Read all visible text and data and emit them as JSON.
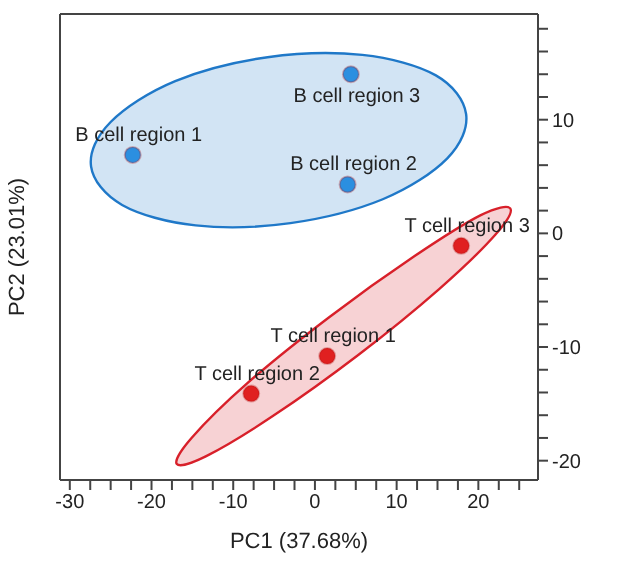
{
  "chart_data": {
    "type": "scatter",
    "xlabel": "PC1 (37.68%)",
    "ylabel": "PC2 (23.01%)",
    "xlim": [
      -31.2,
      27.3
    ],
    "ylim": [
      -21.7,
      19.3
    ],
    "xticks": [
      -30,
      {
        "value": -27.5,
        "label": null
      },
      {
        "value": -25,
        "label": null
      },
      {
        "value": -22.5,
        "label": null
      },
      -20,
      {
        "value": -17.5,
        "label": null
      },
      {
        "value": -15,
        "label": null
      },
      {
        "value": -12.5,
        "label": null
      },
      -10,
      {
        "value": -7.5,
        "label": null
      },
      {
        "value": -5,
        "label": null
      },
      {
        "value": -2.5,
        "label": null
      },
      0,
      {
        "value": 2.5,
        "label": null
      },
      {
        "value": 5,
        "label": null
      },
      {
        "value": 7.5,
        "label": null
      },
      10,
      {
        "value": 12.5,
        "label": null
      },
      {
        "value": 15,
        "label": null
      },
      {
        "value": 17.5,
        "label": null
      },
      20,
      {
        "value": 22.5,
        "label": null
      },
      {
        "value": 25,
        "label": null
      }
    ],
    "yticks": [
      -20,
      {
        "value": -18,
        "label": null
      },
      {
        "value": -16,
        "label": null
      },
      {
        "value": -14,
        "label": null
      },
      {
        "value": -12,
        "label": null
      },
      -10,
      {
        "value": -8,
        "label": null
      },
      {
        "value": -6,
        "label": null
      },
      {
        "value": -4,
        "label": null
      },
      {
        "value": -2,
        "label": null
      },
      0,
      {
        "value": 2,
        "label": null
      },
      {
        "value": 4,
        "label": null
      },
      {
        "value": 6,
        "label": null
      },
      {
        "value": 8,
        "label": null
      },
      10,
      {
        "value": 12,
        "label": null
      },
      {
        "value": 14,
        "label": null
      },
      {
        "value": 16,
        "label": null
      },
      {
        "value": 18,
        "label": null
      }
    ],
    "marker": "circle",
    "series": [
      {
        "type": "area",
        "marker": "none",
        "color": "#1f78c8",
        "x": [
          18.5,
          16.2,
          8.3,
          -3,
          -14.6,
          -23.6,
          -27.4,
          -25,
          -17.1,
          -5.8,
          5.8,
          14.8
        ],
        "values": [
          10.5,
          6.6,
          3,
          0.9,
          0.7,
          2.5,
          5.9,
          9.8,
          13.4,
          15.5,
          15.7,
          13.9
        ]
      },
      {
        "type": "area",
        "marker": "none",
        "color": "#d8202a",
        "x": [
          23.9,
          22.1,
          15.2,
          5.3,
          -5.2,
          -13.3,
          -16.9,
          -15.1,
          -8.3,
          1.7,
          12.2,
          20.3
        ],
        "values": [
          2.2,
          -0.1,
          -4.9,
          -10.7,
          -16.1,
          -19.6,
          -20.3,
          -18,
          -13.2,
          -7.4,
          -2,
          1.6
        ]
      },
      {
        "name": "B cell region 1",
        "color": "#2b8fe0",
        "x": [
          -22.3
        ],
        "values": [
          6.9
        ]
      },
      {
        "name": "B cell region 2",
        "color": "#2b8fe0",
        "x": [
          4.0
        ],
        "values": [
          4.3
        ]
      },
      {
        "name": "B cell region 3",
        "color": "#2b8fe0",
        "x": [
          4.4
        ],
        "values": [
          14.0
        ]
      },
      {
        "name": "T cell region 1",
        "color": "#e02020",
        "x": [
          1.5
        ],
        "values": [
          -10.8
        ]
      },
      {
        "name": "T cell region 2",
        "color": "#e02020",
        "x": [
          -7.8
        ],
        "values": [
          -14.1
        ]
      },
      {
        "name": "T cell region 3",
        "color": "#e02020",
        "x": [
          17.9
        ],
        "values": [
          -1.1
        ]
      }
    ]
  }
}
